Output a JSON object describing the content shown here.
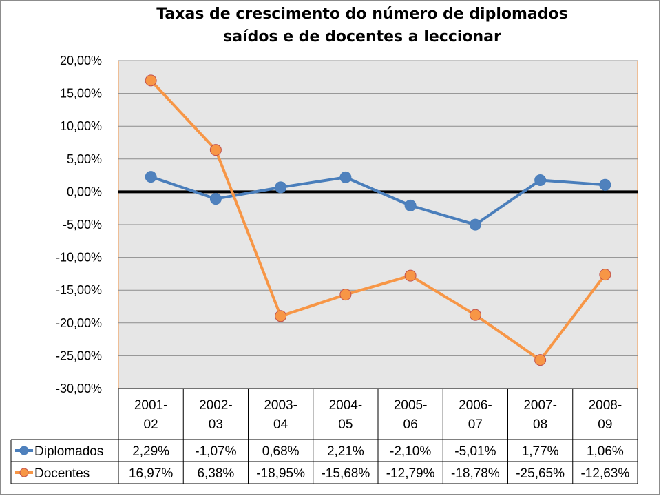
{
  "chart_data": {
    "type": "line",
    "title": "Taxas de crescimento do número de diplomados\nsaídos e de docentes a leccionar",
    "categories": [
      [
        "2001-",
        "02"
      ],
      [
        "2002-",
        "03"
      ],
      [
        "2003-",
        "04"
      ],
      [
        "2004-",
        "05"
      ],
      [
        "2005-",
        "06"
      ],
      [
        "2006-",
        "07"
      ],
      [
        "2007-",
        "08"
      ],
      [
        "2008-",
        "09"
      ]
    ],
    "ylim": [
      -30,
      20
    ],
    "yticks": [
      20,
      15,
      10,
      5,
      0,
      -5,
      -10,
      -15,
      -20,
      -25,
      -30
    ],
    "ytick_labels": [
      "20,00%",
      "15,00%",
      "10,00%",
      "5,00%",
      "0,00%",
      "-5,00%",
      "-10,00%",
      "-15,00%",
      "-20,00%",
      "-25,00%",
      "-30,00%"
    ],
    "grid": true,
    "legend": "data-table",
    "series": [
      {
        "name": "Diplomados",
        "color": "#4a7ebb",
        "marker_fill": "#4f81bd",
        "values": [
          2.29,
          -1.07,
          0.68,
          2.21,
          -2.1,
          -5.01,
          1.77,
          1.06
        ],
        "labels": [
          "2,29%",
          "-1,07%",
          "0,68%",
          "2,21%",
          "-2,10%",
          "-5,01%",
          "1,77%",
          "1,06%"
        ]
      },
      {
        "name": "Docentes",
        "color": "#f79646",
        "marker_fill": "#f79646",
        "marker_stroke": "#c0504d",
        "values": [
          16.97,
          6.38,
          -18.95,
          -15.68,
          -12.79,
          -18.78,
          -25.65,
          -12.63
        ],
        "labels": [
          "16,97%",
          "6,38%",
          "-18,95%",
          "-15,68%",
          "-12,79%",
          "-18,78%",
          "-25,65%",
          "-12,63%"
        ]
      }
    ],
    "colors": {
      "plot_background": "#e6e6e6",
      "gridline": "#8c8c8c",
      "zero_line": "#000000"
    }
  }
}
